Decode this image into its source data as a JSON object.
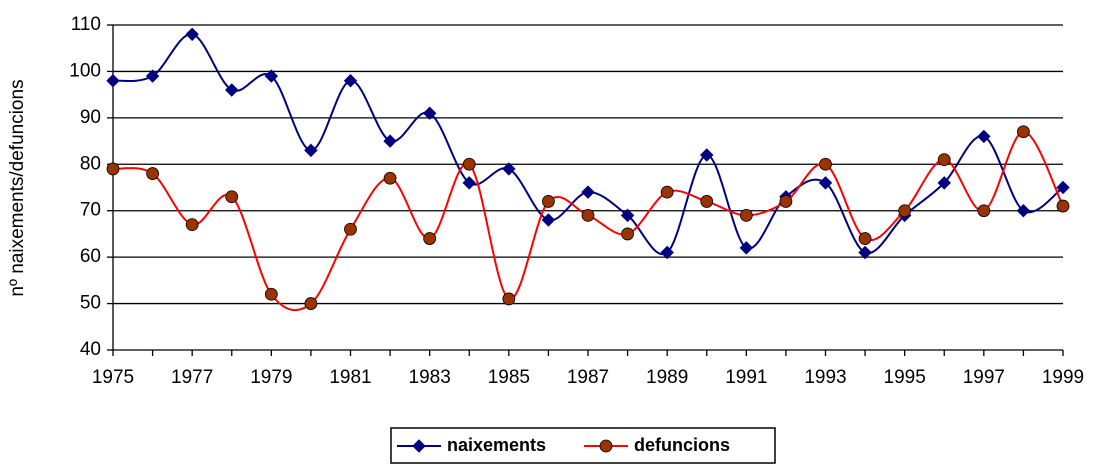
{
  "chart_data": {
    "type": "line",
    "y_label": "nº naixements/defuncions",
    "categories": [
      "1975",
      null,
      "1977",
      null,
      "1979",
      null,
      "1981",
      null,
      "1983",
      null,
      "1985",
      null,
      "1987",
      null,
      "1989",
      null,
      "1991",
      null,
      "1993",
      null,
      "1995",
      null,
      "1997",
      null,
      "1999"
    ],
    "series": [
      {
        "name": "naixements",
        "color": "#000080",
        "marker": "diamond",
        "values": [
          98,
          99,
          108,
          96,
          99,
          83,
          98,
          85,
          91,
          76,
          79,
          68,
          74,
          69,
          61,
          82,
          62,
          73,
          76,
          61,
          69,
          76,
          86,
          70,
          75
        ]
      },
      {
        "name": "defuncions",
        "color": "#ff0000",
        "marker": "circle",
        "values": [
          79,
          78,
          67,
          73,
          52,
          50,
          66,
          77,
          64,
          80,
          51,
          72,
          69,
          65,
          74,
          72,
          69,
          72,
          80,
          64,
          70,
          81,
          70,
          87,
          71
        ]
      }
    ],
    "ylim": [
      40,
      110
    ],
    "yticks": [
      40,
      50,
      60,
      70,
      80,
      90,
      100,
      110
    ],
    "grid": true,
    "legend": "bottom"
  }
}
